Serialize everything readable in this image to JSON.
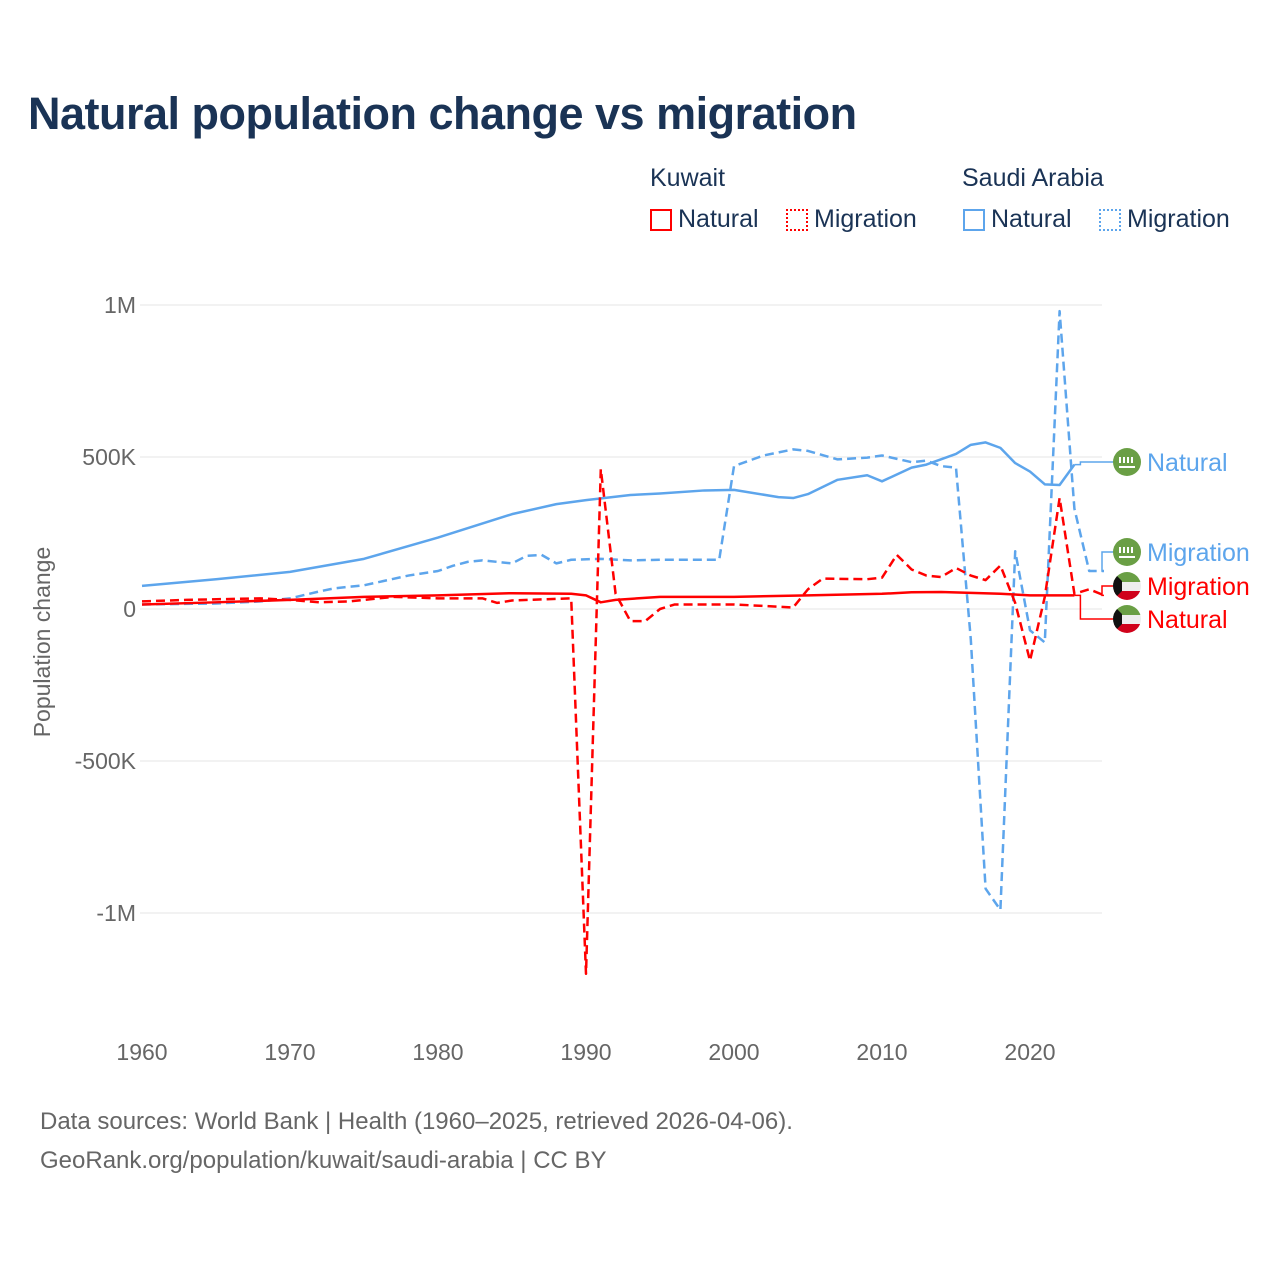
{
  "title": "Natural population change vs migration",
  "legend": {
    "groups": [
      {
        "name": "Kuwait",
        "items": [
          {
            "label": "Natural",
            "style": "solid",
            "color": "#ff0000"
          },
          {
            "label": "Migration",
            "style": "dotted",
            "color": "#ff0000"
          }
        ]
      },
      {
        "name": "Saudi Arabia",
        "items": [
          {
            "label": "Natural",
            "style": "solid",
            "color": "#5da5ec"
          },
          {
            "label": "Migration",
            "style": "dotted",
            "color": "#5da5ec"
          }
        ]
      }
    ]
  },
  "footer": {
    "line1": "Data sources: World Bank | Health (1960–2025, retrieved 2026-04-06).",
    "line2": "GeoRank.org/population/kuwait/saudi-arabia | CC BY"
  },
  "chart_data": {
    "type": "line",
    "title": "Natural population change vs migration",
    "xlabel": "",
    "ylabel": "Population change",
    "xlim": [
      1960,
      2025
    ],
    "ylim": [
      -1250000,
      1000000
    ],
    "xticks": [
      1960,
      1970,
      1980,
      1990,
      2000,
      2010,
      2020
    ],
    "xtick_labels": [
      "1960",
      "1970",
      "1980",
      "1990",
      "2000",
      "2010",
      "2020"
    ],
    "yticks": [
      1000000,
      500000,
      0,
      -500000,
      -1000000
    ],
    "ytick_labels": [
      "1M",
      "500K",
      "0",
      "-500K",
      "-1M"
    ],
    "grid": true,
    "series": [
      {
        "name": "Saudi Arabia Natural",
        "label": "Natural",
        "country": "Saudi Arabia",
        "color": "#5da5ec",
        "dash": false,
        "points": [
          [
            1960,
            76000
          ],
          [
            1965,
            98000
          ],
          [
            1970,
            122000
          ],
          [
            1975,
            165000
          ],
          [
            1980,
            235000
          ],
          [
            1985,
            312000
          ],
          [
            1988,
            345000
          ],
          [
            1990,
            358000
          ],
          [
            1993,
            375000
          ],
          [
            1995,
            380000
          ],
          [
            1998,
            390000
          ],
          [
            2000,
            392000
          ],
          [
            2003,
            368000
          ],
          [
            2004,
            365000
          ],
          [
            2005,
            378000
          ],
          [
            2007,
            425000
          ],
          [
            2009,
            440000
          ],
          [
            2010,
            420000
          ],
          [
            2012,
            465000
          ],
          [
            2013,
            475000
          ],
          [
            2015,
            510000
          ],
          [
            2016,
            540000
          ],
          [
            2017,
            548000
          ],
          [
            2018,
            530000
          ],
          [
            2019,
            480000
          ],
          [
            2020,
            452000
          ],
          [
            2021,
            410000
          ],
          [
            2022,
            408000
          ],
          [
            2023,
            475000
          ]
        ]
      },
      {
        "name": "Saudi Arabia Migration",
        "label": "Migration",
        "country": "Saudi Arabia",
        "color": "#5da5ec",
        "dash": true,
        "points": [
          [
            1960,
            15000
          ],
          [
            1965,
            18000
          ],
          [
            1968,
            25000
          ],
          [
            1970,
            35000
          ],
          [
            1972,
            58000
          ],
          [
            1973,
            68000
          ],
          [
            1975,
            78000
          ],
          [
            1978,
            110000
          ],
          [
            1980,
            125000
          ],
          [
            1981,
            142000
          ],
          [
            1982,
            155000
          ],
          [
            1983,
            160000
          ],
          [
            1985,
            150000
          ],
          [
            1986,
            175000
          ],
          [
            1987,
            178000
          ],
          [
            1988,
            150000
          ],
          [
            1989,
            162000
          ],
          [
            1991,
            165000
          ],
          [
            1993,
            160000
          ],
          [
            1995,
            162000
          ],
          [
            1999,
            162000
          ],
          [
            2000,
            470000
          ],
          [
            2002,
            505000
          ],
          [
            2004,
            525000
          ],
          [
            2005,
            520000
          ],
          [
            2007,
            492000
          ],
          [
            2009,
            498000
          ],
          [
            2010,
            505000
          ],
          [
            2012,
            483000
          ],
          [
            2013,
            488000
          ],
          [
            2014,
            470000
          ],
          [
            2015,
            465000
          ],
          [
            2016,
            -100000
          ],
          [
            2017,
            -920000
          ],
          [
            2018,
            -990000
          ],
          [
            2019,
            190000
          ],
          [
            2020,
            -70000
          ],
          [
            2021,
            -110000
          ],
          [
            2022,
            980000
          ],
          [
            2023,
            330000
          ],
          [
            2024,
            125000
          ],
          [
            2025,
            125000
          ]
        ]
      },
      {
        "name": "Kuwait Migration",
        "label": "Migration",
        "country": "Kuwait",
        "color": "#ff0000",
        "dash": true,
        "points": [
          [
            1960,
            25000
          ],
          [
            1963,
            30000
          ],
          [
            1968,
            35000
          ],
          [
            1970,
            30000
          ],
          [
            1972,
            22000
          ],
          [
            1974,
            25000
          ],
          [
            1977,
            40000
          ],
          [
            1980,
            35000
          ],
          [
            1983,
            35000
          ],
          [
            1984,
            20000
          ],
          [
            1985,
            28000
          ],
          [
            1989,
            35000
          ],
          [
            1990,
            -1200000
          ],
          [
            1991,
            460000
          ],
          [
            1992,
            50000
          ],
          [
            1993,
            -40000
          ],
          [
            1994,
            -40000
          ],
          [
            1995,
            0
          ],
          [
            1996,
            15000
          ],
          [
            2000,
            15000
          ],
          [
            2004,
            5000
          ],
          [
            2005,
            65000
          ],
          [
            2006,
            100000
          ],
          [
            2009,
            98000
          ],
          [
            2010,
            103000
          ],
          [
            2011,
            178000
          ],
          [
            2012,
            130000
          ],
          [
            2013,
            110000
          ],
          [
            2014,
            105000
          ],
          [
            2015,
            135000
          ],
          [
            2016,
            110000
          ],
          [
            2017,
            95000
          ],
          [
            2018,
            143000
          ],
          [
            2019,
            20000
          ],
          [
            2020,
            -170000
          ],
          [
            2021,
            40000
          ],
          [
            2022,
            365000
          ],
          [
            2023,
            50000
          ],
          [
            2024,
            65000
          ],
          [
            2025,
            45000
          ]
        ]
      },
      {
        "name": "Kuwait Natural",
        "label": "Natural",
        "country": "Kuwait",
        "color": "#ff0000",
        "dash": false,
        "points": [
          [
            1960,
            15000
          ],
          [
            1965,
            22000
          ],
          [
            1970,
            30000
          ],
          [
            1975,
            40000
          ],
          [
            1980,
            45000
          ],
          [
            1985,
            52000
          ],
          [
            1989,
            50000
          ],
          [
            1990,
            45000
          ],
          [
            1991,
            22000
          ],
          [
            1992,
            30000
          ],
          [
            1995,
            40000
          ],
          [
            2000,
            40000
          ],
          [
            2005,
            45000
          ],
          [
            2010,
            50000
          ],
          [
            2012,
            55000
          ],
          [
            2014,
            56000
          ],
          [
            2016,
            53000
          ],
          [
            2018,
            50000
          ],
          [
            2020,
            45000
          ],
          [
            2023,
            45000
          ]
        ]
      }
    ]
  }
}
